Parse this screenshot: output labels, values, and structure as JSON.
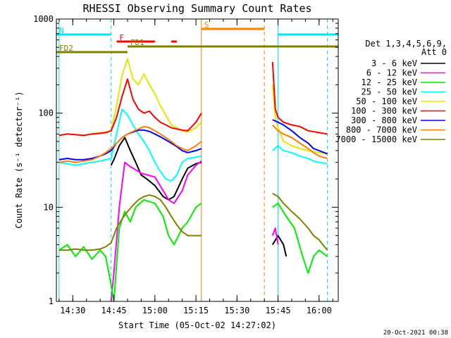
{
  "chart_data": {
    "type": "line",
    "title": "RHESSI Observing Summary Count Rates",
    "xlabel": "Start Time (05-Oct-02 14:27:02)",
    "ylabel": "Count Rate (s⁻¹ detector⁻¹)",
    "yscale": "log",
    "ylim": [
      1,
      1000
    ],
    "xlim": [
      "14:24",
      "16:07"
    ],
    "y_ticks": [
      "1",
      "10",
      "100",
      "1000"
    ],
    "x_ticks": [
      "14:30",
      "14:45",
      "15:00",
      "15:15",
      "15:30",
      "15:45",
      "16:00"
    ],
    "legend_title": [
      "Det 1,3,4,5,6,9,",
      "Att 0"
    ],
    "legend_position": "right",
    "timestamp": "20-Oct-2021 00:38",
    "flags": [
      {
        "label": "N",
        "color": "#00e5ee",
        "segments": [
          [
            "14:24",
            "14:44"
          ],
          [
            "15:45",
            "16:07"
          ]
        ]
      },
      {
        "label": "F",
        "color": "#ff0000",
        "segments": [
          [
            "14:46",
            "15:00"
          ],
          [
            "15:06",
            "15:08"
          ]
        ]
      },
      {
        "label": "FD1",
        "color": "#808000",
        "segments": [
          [
            "14:50",
            "16:07"
          ]
        ]
      },
      {
        "label": "FD2",
        "color": "#808000",
        "segments": [
          [
            "14:24",
            "14:50"
          ]
        ]
      },
      {
        "label": "S",
        "color": "#ff7f00",
        "segments": [
          [
            "15:17",
            "15:40"
          ]
        ]
      }
    ],
    "vlines": [
      {
        "time": "14:25",
        "color": "#00e5ee",
        "style": "solid"
      },
      {
        "time": "14:44",
        "color": "#00e5ee",
        "style": "dashed"
      },
      {
        "time": "15:17",
        "color": "#ff7f00",
        "style": "solid"
      },
      {
        "time": "15:40",
        "color": "#ff7f00",
        "style": "dashed"
      },
      {
        "time": "15:45",
        "color": "#00e5ee",
        "style": "solid"
      },
      {
        "time": "16:03",
        "color": "#00e5ee",
        "style": "dashed"
      }
    ],
    "series": [
      {
        "name": "3 - 6 keV",
        "color": "#000000",
        "points": [
          [
            "14:44",
            28
          ],
          [
            "14:45",
            32
          ],
          [
            "14:47",
            45
          ],
          [
            "14:49",
            55
          ],
          [
            "14:51",
            40
          ],
          [
            "14:53",
            30
          ],
          [
            "14:55",
            22
          ],
          [
            "14:57",
            20
          ],
          [
            "15:00",
            17
          ],
          [
            "15:03",
            13
          ],
          [
            "15:05",
            12
          ],
          [
            "15:07",
            13
          ],
          [
            "15:10",
            20
          ],
          [
            "15:12",
            26
          ],
          [
            "15:15",
            29
          ],
          [
            "15:17",
            30
          ],
          null,
          [
            "15:43",
            4
          ],
          [
            "15:45",
            5
          ],
          [
            "15:47",
            4
          ],
          [
            "15:48",
            3
          ]
        ]
      },
      {
        "name": "6 - 12 keV",
        "color": "#ff00ff",
        "points": [
          [
            "14:44",
            1
          ],
          [
            "14:45",
            2
          ],
          [
            "14:47",
            10
          ],
          [
            "14:49",
            30
          ],
          [
            "14:51",
            27
          ],
          [
            "14:53",
            25
          ],
          [
            "14:55",
            23
          ],
          [
            "15:00",
            21
          ],
          [
            "15:03",
            15
          ],
          [
            "15:05",
            12
          ],
          [
            "15:07",
            11
          ],
          [
            "15:10",
            15
          ],
          [
            "15:12",
            22
          ],
          [
            "15:15",
            28
          ],
          [
            "15:17",
            31
          ],
          null,
          [
            "15:43",
            5
          ],
          [
            "15:44",
            6
          ],
          [
            "15:45",
            4
          ]
        ]
      },
      {
        "name": "12 - 25 keV",
        "color": "#00ee00",
        "points": [
          [
            "14:25",
            3.5
          ],
          [
            "14:28",
            4.0
          ],
          [
            "14:31",
            3.0
          ],
          [
            "14:34",
            3.8
          ],
          [
            "14:37",
            2.8
          ],
          [
            "14:40",
            3.5
          ],
          [
            "14:42",
            3.0
          ],
          [
            "14:44",
            1.5
          ],
          [
            "14:45",
            1
          ],
          [
            "14:47",
            6
          ],
          [
            "14:49",
            9
          ],
          [
            "14:51",
            7
          ],
          [
            "14:53",
            10
          ],
          [
            "14:56",
            12
          ],
          [
            "15:00",
            11
          ],
          [
            "15:03",
            8
          ],
          [
            "15:05",
            5
          ],
          [
            "15:07",
            4
          ],
          [
            "15:10",
            6
          ],
          [
            "15:12",
            7
          ],
          [
            "15:15",
            10
          ],
          [
            "15:17",
            11
          ],
          null,
          [
            "15:43",
            10
          ],
          [
            "15:45",
            11
          ],
          [
            "15:48",
            8
          ],
          [
            "15:51",
            6
          ],
          [
            "15:54",
            3
          ],
          [
            "15:56",
            2
          ],
          [
            "15:58",
            3
          ],
          [
            "16:00",
            3.5
          ],
          [
            "16:03",
            3
          ]
        ]
      },
      {
        "name": "25 - 50 keV",
        "color": "#00ffff",
        "points": [
          [
            "14:25",
            30
          ],
          [
            "14:28",
            29
          ],
          [
            "14:31",
            28
          ],
          [
            "14:34",
            29
          ],
          [
            "14:37",
            30
          ],
          [
            "14:40",
            31
          ],
          [
            "14:42",
            32
          ],
          [
            "14:44",
            33
          ],
          [
            "14:46",
            60
          ],
          [
            "14:48",
            110
          ],
          [
            "14:50",
            95
          ],
          [
            "14:52",
            75
          ],
          [
            "14:54",
            60
          ],
          [
            "14:56",
            50
          ],
          [
            "14:58",
            40
          ],
          [
            "15:00",
            30
          ],
          [
            "15:02",
            24
          ],
          [
            "15:04",
            20
          ],
          [
            "15:06",
            19
          ],
          [
            "15:08",
            22
          ],
          [
            "15:10",
            30
          ],
          [
            "15:12",
            33
          ],
          [
            "15:15",
            34
          ],
          [
            "15:17",
            35
          ],
          null,
          [
            "15:43",
            40
          ],
          [
            "15:45",
            45
          ],
          [
            "15:47",
            40
          ],
          [
            "15:50",
            38
          ],
          [
            "15:53",
            35
          ],
          [
            "15:56",
            33
          ],
          [
            "15:58",
            31
          ],
          [
            "16:00",
            30
          ],
          [
            "16:03",
            29
          ]
        ]
      },
      {
        "name": "50 - 100 keV",
        "color": "#e5e500",
        "points": [
          [
            "14:25",
            58
          ],
          [
            "14:28",
            60
          ],
          [
            "14:31",
            59
          ],
          [
            "14:34",
            58
          ],
          [
            "14:37",
            60
          ],
          [
            "14:40",
            62
          ],
          [
            "14:42",
            63
          ],
          [
            "14:44",
            65
          ],
          [
            "14:46",
            120
          ],
          [
            "14:48",
            250
          ],
          [
            "14:50",
            380
          ],
          [
            "14:52",
            230
          ],
          [
            "14:54",
            200
          ],
          [
            "14:56",
            260
          ],
          [
            "14:58",
            200
          ],
          [
            "15:00",
            160
          ],
          [
            "15:02",
            120
          ],
          [
            "15:04",
            95
          ],
          [
            "15:06",
            75
          ],
          [
            "15:08",
            70
          ],
          [
            "15:10",
            65
          ],
          [
            "15:12",
            63
          ],
          [
            "15:15",
            70
          ],
          [
            "15:17",
            80
          ],
          null,
          [
            "15:43",
            200
          ],
          [
            "15:44",
            90
          ],
          [
            "15:45",
            70
          ],
          [
            "15:47",
            50
          ],
          [
            "15:50",
            45
          ],
          [
            "15:53",
            42
          ],
          [
            "15:56",
            40
          ],
          [
            "16:00",
            38
          ],
          [
            "16:03",
            37
          ]
        ]
      },
      {
        "name": "100 - 300 keV",
        "color": "#ff0000",
        "points": [
          [
            "14:25",
            58
          ],
          [
            "14:28",
            60
          ],
          [
            "14:31",
            59
          ],
          [
            "14:34",
            58
          ],
          [
            "14:37",
            60
          ],
          [
            "14:40",
            61
          ],
          [
            "14:42",
            62
          ],
          [
            "14:44",
            65
          ],
          [
            "14:46",
            90
          ],
          [
            "14:48",
            150
          ],
          [
            "14:50",
            230
          ],
          [
            "14:52",
            140
          ],
          [
            "14:54",
            110
          ],
          [
            "14:56",
            100
          ],
          [
            "14:58",
            105
          ],
          [
            "15:00",
            90
          ],
          [
            "15:02",
            80
          ],
          [
            "15:04",
            75
          ],
          [
            "15:06",
            70
          ],
          [
            "15:08",
            68
          ],
          [
            "15:10",
            66
          ],
          [
            "15:12",
            65
          ],
          [
            "15:15",
            80
          ],
          [
            "15:17",
            100
          ],
          null,
          [
            "15:43",
            350
          ],
          [
            "15:44",
            110
          ],
          [
            "15:45",
            90
          ],
          [
            "15:47",
            80
          ],
          [
            "15:50",
            75
          ],
          [
            "15:53",
            72
          ],
          [
            "15:56",
            65
          ],
          [
            "16:00",
            62
          ],
          [
            "16:03",
            60
          ]
        ]
      },
      {
        "name": "300 - 800 keV",
        "color": "#0000ff",
        "points": [
          [
            "14:25",
            32
          ],
          [
            "14:28",
            33
          ],
          [
            "14:31",
            32
          ],
          [
            "14:34",
            32
          ],
          [
            "14:37",
            33
          ],
          [
            "14:40",
            35
          ],
          [
            "14:42",
            37
          ],
          [
            "14:44",
            40
          ],
          [
            "14:46",
            48
          ],
          [
            "14:48",
            55
          ],
          [
            "14:50",
            60
          ],
          [
            "14:52",
            63
          ],
          [
            "14:54",
            66
          ],
          [
            "14:56",
            66
          ],
          [
            "14:58",
            64
          ],
          [
            "15:00",
            60
          ],
          [
            "15:02",
            56
          ],
          [
            "15:04",
            52
          ],
          [
            "15:06",
            48
          ],
          [
            "15:08",
            44
          ],
          [
            "15:10",
            40
          ],
          [
            "15:12",
            38
          ],
          [
            "15:15",
            40
          ],
          [
            "15:17",
            42
          ],
          null,
          [
            "15:43",
            85
          ],
          [
            "15:45",
            80
          ],
          [
            "15:47",
            75
          ],
          [
            "15:50",
            65
          ],
          [
            "15:53",
            55
          ],
          [
            "15:56",
            48
          ],
          [
            "15:58",
            42
          ],
          [
            "16:00",
            40
          ],
          [
            "16:03",
            37
          ]
        ]
      },
      {
        "name": "800 - 7000 keV",
        "color": "#ff7f00",
        "points": [
          [
            "14:25",
            30
          ],
          [
            "14:28",
            31
          ],
          [
            "14:31",
            30
          ],
          [
            "14:34",
            31
          ],
          [
            "14:37",
            32
          ],
          [
            "14:40",
            35
          ],
          [
            "14:42",
            38
          ],
          [
            "14:44",
            42
          ],
          [
            "14:46",
            48
          ],
          [
            "14:48",
            55
          ],
          [
            "14:50",
            60
          ],
          [
            "14:52",
            64
          ],
          [
            "14:54",
            68
          ],
          [
            "14:56",
            72
          ],
          [
            "14:58",
            70
          ],
          [
            "15:00",
            65
          ],
          [
            "15:02",
            60
          ],
          [
            "15:04",
            55
          ],
          [
            "15:06",
            50
          ],
          [
            "15:08",
            45
          ],
          [
            "15:10",
            42
          ],
          [
            "15:12",
            40
          ],
          [
            "15:15",
            45
          ],
          [
            "15:17",
            50
          ],
          null,
          [
            "15:43",
            75
          ],
          [
            "15:45",
            65
          ],
          [
            "15:47",
            60
          ],
          [
            "15:50",
            55
          ],
          [
            "15:53",
            48
          ],
          [
            "15:56",
            42
          ],
          [
            "15:58",
            38
          ],
          [
            "16:00",
            35
          ],
          [
            "16:03",
            33
          ]
        ]
      },
      {
        "name": "7000 - 15000 keV",
        "color": "#808000",
        "points": [
          [
            "14:25",
            3.5
          ],
          [
            "14:28",
            3.5
          ],
          [
            "14:31",
            3.6
          ],
          [
            "14:34",
            3.5
          ],
          [
            "14:37",
            3.5
          ],
          [
            "14:40",
            3.6
          ],
          [
            "14:42",
            3.8
          ],
          [
            "14:44",
            4.2
          ],
          [
            "14:46",
            6
          ],
          [
            "14:48",
            7.5
          ],
          [
            "14:50",
            9
          ],
          [
            "14:52",
            10.5
          ],
          [
            "14:54",
            12
          ],
          [
            "14:56",
            13
          ],
          [
            "14:58",
            13.5
          ],
          [
            "15:00",
            13
          ],
          [
            "15:02",
            12
          ],
          [
            "15:04",
            10
          ],
          [
            "15:06",
            8
          ],
          [
            "15:08",
            6.5
          ],
          [
            "15:10",
            5.5
          ],
          [
            "15:12",
            5
          ],
          [
            "15:15",
            5
          ],
          [
            "15:17",
            5
          ],
          null,
          [
            "15:43",
            14
          ],
          [
            "15:45",
            13
          ],
          [
            "15:47",
            11
          ],
          [
            "15:50",
            9
          ],
          [
            "15:53",
            7.5
          ],
          [
            "15:56",
            6
          ],
          [
            "15:58",
            5
          ],
          [
            "16:00",
            4.5
          ],
          [
            "16:03",
            3.5
          ]
        ]
      }
    ]
  }
}
